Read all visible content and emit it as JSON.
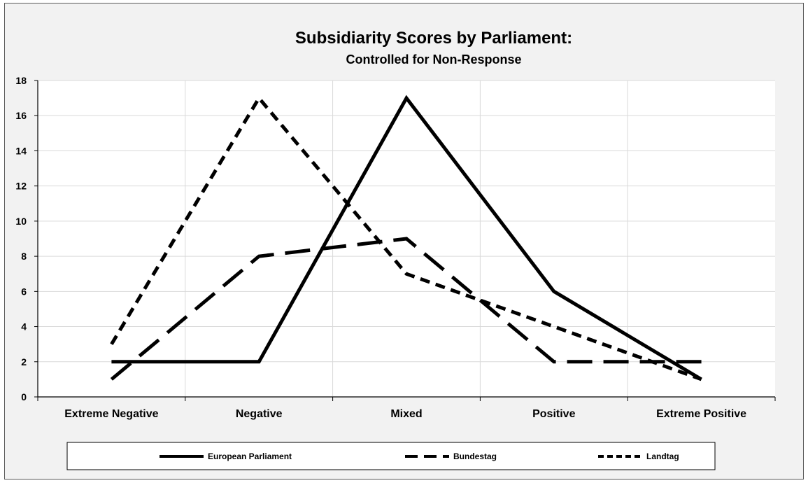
{
  "chart_data": {
    "type": "line",
    "title": "Subsidiarity Scores by Parliament:",
    "subtitle": "Controlled for Non-Response",
    "xlabel": "",
    "ylabel": "",
    "categories": [
      "Extreme Negative",
      "Negative",
      "Mixed",
      "Positive",
      "Extreme Positive"
    ],
    "ylim": [
      0,
      18
    ],
    "yticks": [
      0,
      2,
      4,
      6,
      8,
      10,
      12,
      14,
      16,
      18
    ],
    "grid": true,
    "legend_position": "bottom",
    "series": [
      {
        "name": "European Parliament",
        "style": "solid",
        "color": "#000000",
        "values": [
          2,
          2,
          17,
          6,
          1
        ]
      },
      {
        "name": "Bundestag",
        "style": "long-dash",
        "color": "#000000",
        "values": [
          1,
          8,
          9,
          2,
          2
        ]
      },
      {
        "name": "Landtag",
        "style": "short-dash",
        "color": "#000000",
        "values": [
          3,
          17,
          7,
          4,
          1
        ]
      }
    ]
  }
}
